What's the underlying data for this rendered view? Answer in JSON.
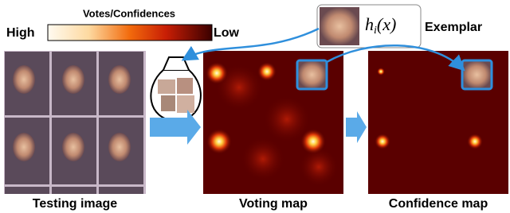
{
  "colorbar": {
    "title": "Votes/Confidences",
    "high": "High",
    "low": "Low"
  },
  "exemplar": {
    "symbol": "h",
    "subscript": "i",
    "argument": "(x)",
    "label": "Exemplar"
  },
  "panels": {
    "testing": "Testing image",
    "voting": "Voting map",
    "confidence": "Confidence map"
  }
}
